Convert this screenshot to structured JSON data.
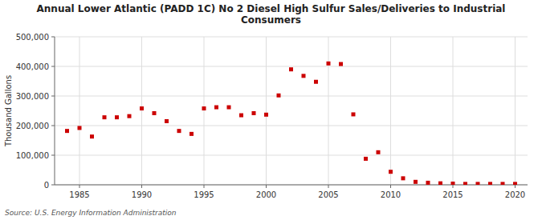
{
  "chart_data": {
    "type": "scatter",
    "title": "Annual Lower Atlantic (PADD 1C) No 2 Diesel High Sulfur Sales/Deliveries to Industrial\nConsumers",
    "y_label": "Thousand Gallons",
    "source": "Source: U.S. Energy Information Administration",
    "x": [
      1984,
      1985,
      1986,
      1987,
      1988,
      1989,
      1990,
      1991,
      1992,
      1993,
      1994,
      1995,
      1996,
      1997,
      1998,
      1999,
      2000,
      2001,
      2002,
      2003,
      2004,
      2005,
      2006,
      2007,
      2008,
      2009,
      2010,
      2011,
      2012,
      2013,
      2014,
      2015,
      2016,
      2017,
      2018,
      2019,
      2020
    ],
    "values": [
      182000,
      192000,
      163000,
      228000,
      228000,
      232000,
      258000,
      242000,
      215000,
      182000,
      172000,
      258000,
      262000,
      262000,
      235000,
      242000,
      237000,
      302000,
      390000,
      368000,
      348000,
      410000,
      408000,
      238000,
      88000,
      110000,
      44000,
      22000,
      10000,
      7000,
      5000,
      4000,
      3000,
      3000,
      3000,
      3000,
      3000
    ],
    "color": "#cc0000",
    "marker": "square",
    "xlim": [
      1983,
      2021
    ],
    "ylim": [
      0,
      500000
    ],
    "xticks": [
      1985,
      1990,
      1995,
      2000,
      2005,
      2010,
      2015,
      2020
    ],
    "yticks": [
      0,
      {
        "value": 100000,
        "label": "100,000"
      },
      {
        "value": 200000,
        "label": "200,000"
      },
      {
        "value": 300000,
        "label": "300,000"
      },
      {
        "value": 400000,
        "label": "400,000"
      },
      {
        "value": 500000,
        "label": "500,000"
      }
    ],
    "grid": true
  }
}
